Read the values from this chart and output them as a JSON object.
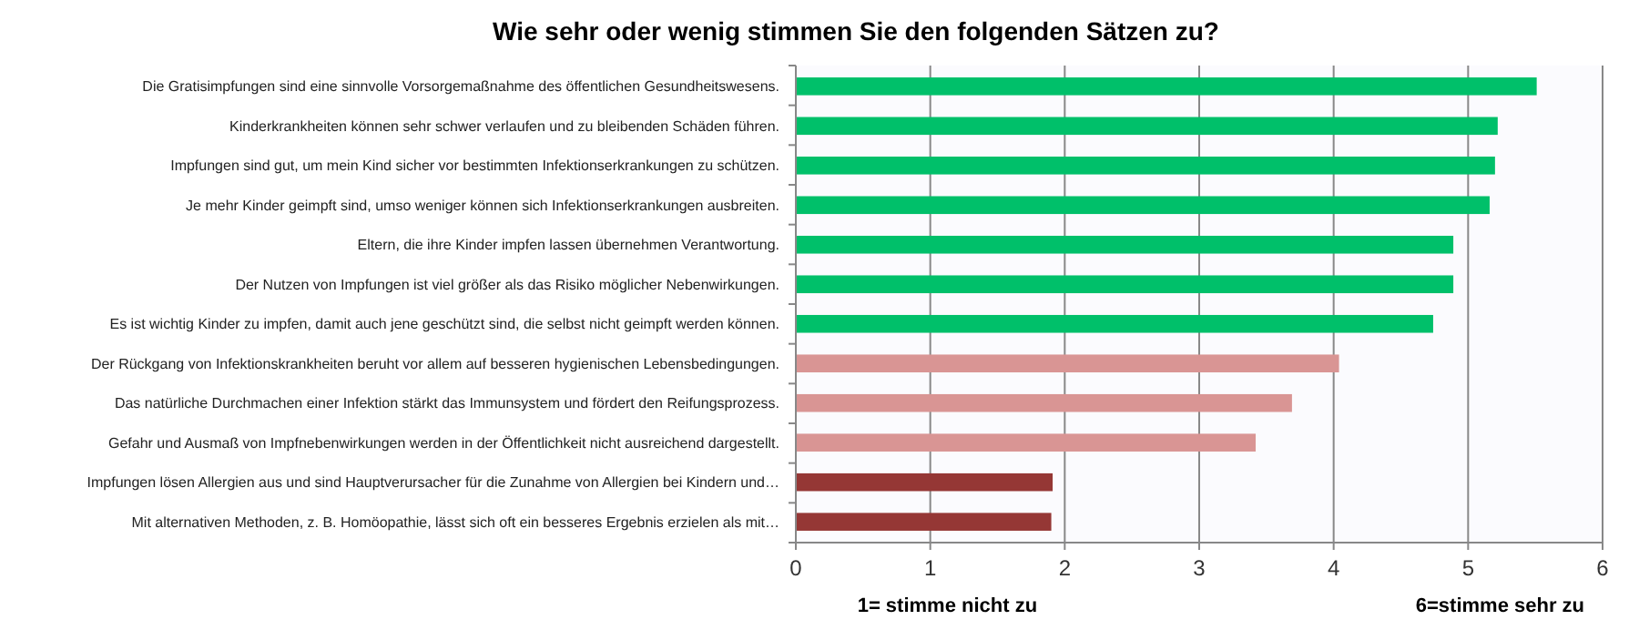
{
  "chart_data": {
    "type": "bar",
    "orientation": "horizontal",
    "title": "Wie sehr oder wenig stimmen Sie den folgenden Sätzen zu?",
    "categories": [
      "Die Gratisimpfungen sind eine sinnvolle Vorsorgemaßnahme des öffentlichen Gesundheitswesens.",
      "Kinderkrankheiten können sehr schwer verlaufen und zu bleibenden Schäden führen.",
      "Impfungen sind gut, um mein Kind sicher vor bestimmten Infektionserkrankungen zu schützen.",
      "Je mehr Kinder geimpft sind, umso weniger können sich Infektionserkrankungen ausbreiten.",
      "Eltern, die ihre Kinder impfen lassen übernehmen Verantwortung.",
      "Der Nutzen von Impfungen ist viel größer als das Risiko möglicher Nebenwirkungen.",
      "Es ist wichtig Kinder zu impfen, damit auch jene geschützt sind, die selbst nicht geimpft werden können.",
      "Der Rückgang von Infektionskrankheiten beruht vor allem auf besseren hygienischen Lebensbedingungen.",
      "Das natürliche Durchmachen einer Infektion stärkt das Immunsystem und fördert den Reifungsprozess.",
      "Gefahr und Ausmaß von Impfnebenwirkungen werden in der Öffentlichkeit nicht ausreichend dargestellt.",
      "Impfungen lösen Allergien aus und sind Hauptverursacher für die Zunahme von Allergien bei Kindern und…",
      "Mit alternativen Methoden, z. B. Homöopathie, lässt sich oft ein besseres Ergebnis erzielen als mit…"
    ],
    "values": [
      5.51,
      5.22,
      5.2,
      5.16,
      4.89,
      4.89,
      4.74,
      4.04,
      3.69,
      3.42,
      1.91,
      1.9
    ],
    "colors": [
      "#00c06a",
      "#00c06a",
      "#00c06a",
      "#00c06a",
      "#00c06a",
      "#00c06a",
      "#00c06a",
      "#d99594",
      "#d99594",
      "#d99594",
      "#953735",
      "#953735"
    ],
    "xlim": [
      0,
      6
    ],
    "xticks": [
      0,
      1,
      2,
      3,
      4,
      5,
      6
    ],
    "grid": "x",
    "annotations": [
      "1= stimme nicht zu",
      "6=stimme sehr zu"
    ]
  }
}
